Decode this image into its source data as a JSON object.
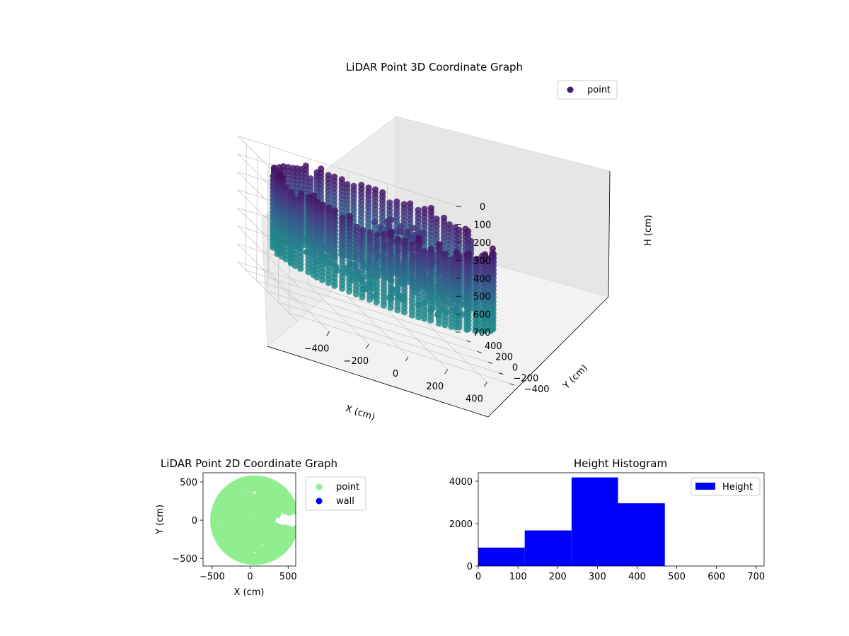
{
  "figure": {
    "background": "#ffffff"
  },
  "chart_data": [
    {
      "type": "scatter3d",
      "title": "LiDAR Point 3D Coordinate Graph",
      "xlabel": "X (cm)",
      "ylabel": "Y (cm)",
      "zlabel": "H (cm)",
      "xlim": [
        -560,
        560
      ],
      "ylim": [
        -560,
        560
      ],
      "zlim": [
        0,
        700
      ],
      "z_inverted": true,
      "x_ticks": [
        "−400",
        "−200",
        "0",
        "200",
        "400"
      ],
      "y_ticks": [
        "−400",
        "−200",
        "0",
        "200",
        "400"
      ],
      "z_ticks": [
        "0",
        "100",
        "200",
        "300",
        "400",
        "500",
        "600",
        "700"
      ],
      "grid": true,
      "legend": {
        "position": "upper-right",
        "entries": [
          {
            "label": "point",
            "color": "#46186a"
          }
        ]
      },
      "colormap": "viridis (height-mapped, purple top to teal bottom)",
      "shape": "cylindrical wall of points, radius ~540 cm, heights 0–470 cm, with an opening near +X and an irregular inner cluster"
    },
    {
      "type": "scatter",
      "title": "LiDAR Point 2D Coordinate Graph",
      "xlabel": "X (cm)",
      "ylabel": "Y (cm)",
      "xlim": [
        -620,
        600
      ],
      "ylim": [
        -600,
        620
      ],
      "x_ticks": [
        "−500",
        "0",
        "500"
      ],
      "y_ticks": [
        "−500",
        "0",
        "500"
      ],
      "legend": {
        "position": "outside-right",
        "entries": [
          {
            "label": "point",
            "color": "#90ee90"
          },
          {
            "label": "wall",
            "color": "#0000ff"
          }
        ]
      },
      "series": [
        {
          "name": "point",
          "color": "#90ee90",
          "center": [
            60,
            0
          ],
          "radius": 545,
          "gap_angle_deg": [
            -12,
            12
          ]
        },
        {
          "name": "wall",
          "color": "#0000ff",
          "points": []
        }
      ]
    },
    {
      "type": "bar",
      "title": "Height Histogram",
      "xlim": [
        0,
        720
      ],
      "ylim": [
        0,
        4400
      ],
      "x_ticks": [
        "0",
        "100",
        "200",
        "300",
        "400",
        "500",
        "600",
        "700"
      ],
      "y_ticks": [
        "0",
        "2000",
        "4000"
      ],
      "legend": {
        "position": "upper-right",
        "entries": [
          {
            "label": "Height",
            "color": "#0000ff"
          }
        ]
      },
      "series": [
        {
          "name": "Height",
          "color": "#0000ff",
          "bins": [
            {
              "x0": 0,
              "x1": 117,
              "count": 870
            },
            {
              "x0": 117,
              "x1": 235,
              "count": 1680
            },
            {
              "x0": 235,
              "x1": 352,
              "count": 4180
            },
            {
              "x0": 352,
              "x1": 470,
              "count": 2960
            },
            {
              "x0": 470,
              "x1": 587,
              "count": 0
            },
            {
              "x0": 587,
              "x1": 705,
              "count": 0
            }
          ]
        }
      ]
    }
  ]
}
